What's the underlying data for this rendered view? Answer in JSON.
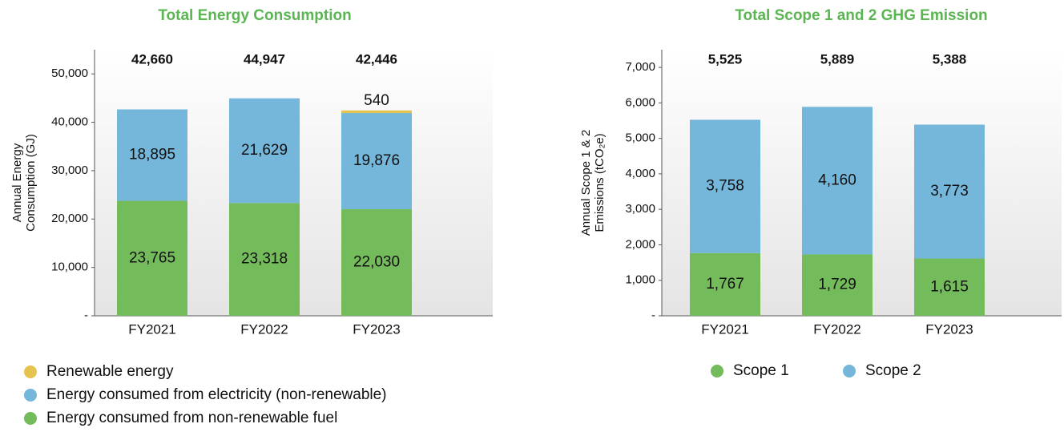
{
  "chart_data": [
    {
      "type": "stacked_bar",
      "title": "Total Energy Consumption",
      "ylabel": [
        "Annual Energy",
        "Consumption (GJ)"
      ],
      "categories": [
        "FY2021",
        "FY2022",
        "FY2023"
      ],
      "series": [
        {
          "name": "Energy consumed from non-renewable fuel",
          "color": "#74bb5c",
          "values": [
            23765,
            23318,
            22030
          ],
          "value_labels": [
            "23,765",
            "23,318",
            "22,030"
          ]
        },
        {
          "name": "Energy consumed from electricity (non-renewable)",
          "color": "#74b7da",
          "values": [
            18895,
            21629,
            19876
          ],
          "value_labels": [
            "18,895",
            "21,629",
            "19,876"
          ]
        },
        {
          "name": "Renewable energy",
          "color": "#e6c24e",
          "values": [
            null,
            null,
            540
          ],
          "value_labels": [
            null,
            null,
            "540"
          ]
        }
      ],
      "totals": [
        42660,
        44947,
        42446
      ],
      "total_labels": [
        "42,660",
        "44,947",
        "42,446"
      ],
      "ylim": [
        0,
        55000
      ],
      "yticks": [
        {
          "value": 0,
          "label": "-"
        },
        {
          "value": 10000,
          "label": "10,000"
        },
        {
          "value": 20000,
          "label": "20,000"
        },
        {
          "value": 30000,
          "label": "30,000"
        },
        {
          "value": 40000,
          "label": "40,000"
        },
        {
          "value": 50000,
          "label": "50,000"
        }
      ],
      "legend": "column-reversed"
    },
    {
      "type": "stacked_bar",
      "title": "Total Scope 1 and 2 GHG Emission",
      "ylabel": [
        "Annual Scope 1 & 2",
        "Emissions (tCO₂e)"
      ],
      "categories": [
        "FY2021",
        "FY2022",
        "FY2023"
      ],
      "series": [
        {
          "name": "Scope 1",
          "color": "#74bb5c",
          "values": [
            1767,
            1729,
            1615
          ],
          "value_labels": [
            "1,767",
            "1,729",
            "1,615"
          ]
        },
        {
          "name": "Scope 2",
          "color": "#74b7da",
          "values": [
            3758,
            4160,
            3773
          ],
          "value_labels": [
            "3,758",
            "4,160",
            "3,773"
          ]
        }
      ],
      "totals": [
        5525,
        5889,
        5388
      ],
      "total_labels": [
        "5,525",
        "5,889",
        "5,388"
      ],
      "ylim": [
        0,
        7500
      ],
      "yticks": [
        {
          "value": 0,
          "label": "-"
        },
        {
          "value": 1000,
          "label": "1,000"
        },
        {
          "value": 2000,
          "label": "2,000"
        },
        {
          "value": 3000,
          "label": "3,000"
        },
        {
          "value": 4000,
          "label": "4,000"
        },
        {
          "value": 5000,
          "label": "5,000"
        },
        {
          "value": 6000,
          "label": "6,000"
        },
        {
          "value": 7000,
          "label": "7,000"
        }
      ],
      "legend": "row"
    }
  ]
}
